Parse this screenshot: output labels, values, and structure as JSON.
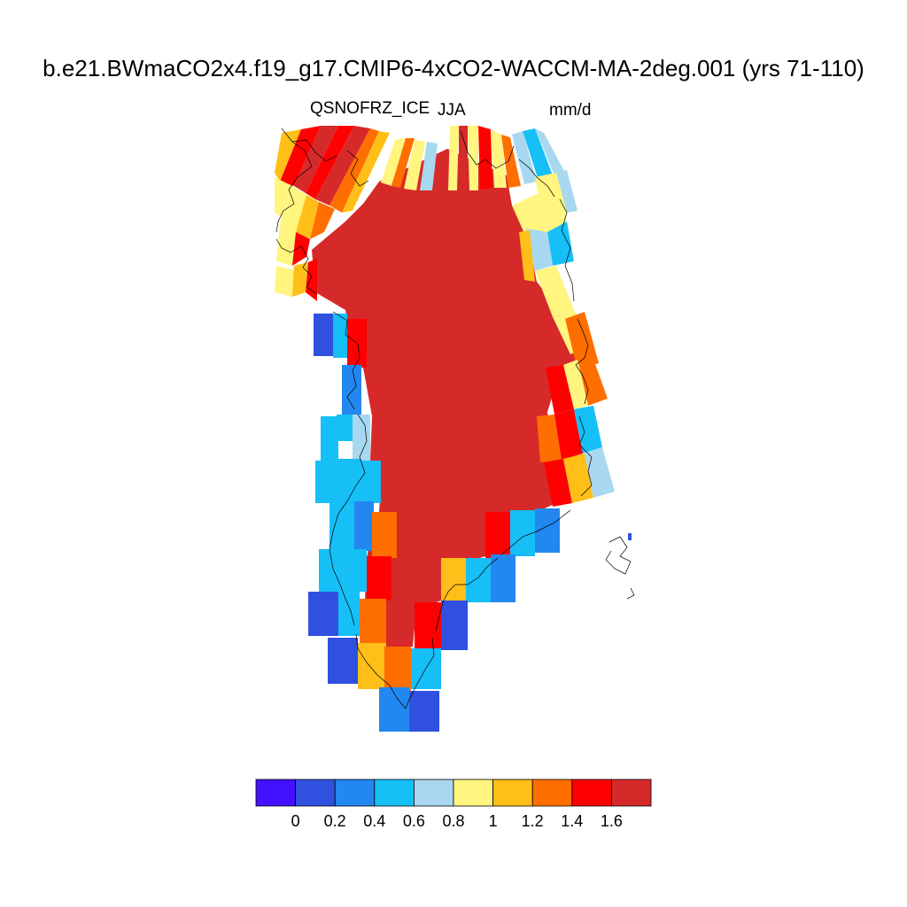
{
  "title": "b.e21.BWmaCO2x4.f19_g17.CMIP6-4xCO2-WACCM-MA-2deg.001 (yrs 71-110)",
  "variable": "QSNOFRZ_ICE",
  "season": "JJA",
  "units": "mm/d",
  "colorbar": {
    "tick_labels": [
      "0",
      "0.2",
      "0.4",
      "0.6",
      "0.8",
      "1",
      "1.2",
      "1.4",
      "1.6"
    ],
    "colors": [
      "#4411ff",
      "#3050e0",
      "#2387f0",
      "#17bff7",
      "#a8d8f0",
      "#fff57f",
      "#ffbf18",
      "#ff6e00",
      "#ff0000",
      "#d62a2a"
    ]
  },
  "map": {
    "region": "Greenland",
    "coastline_color": "#000000"
  }
}
